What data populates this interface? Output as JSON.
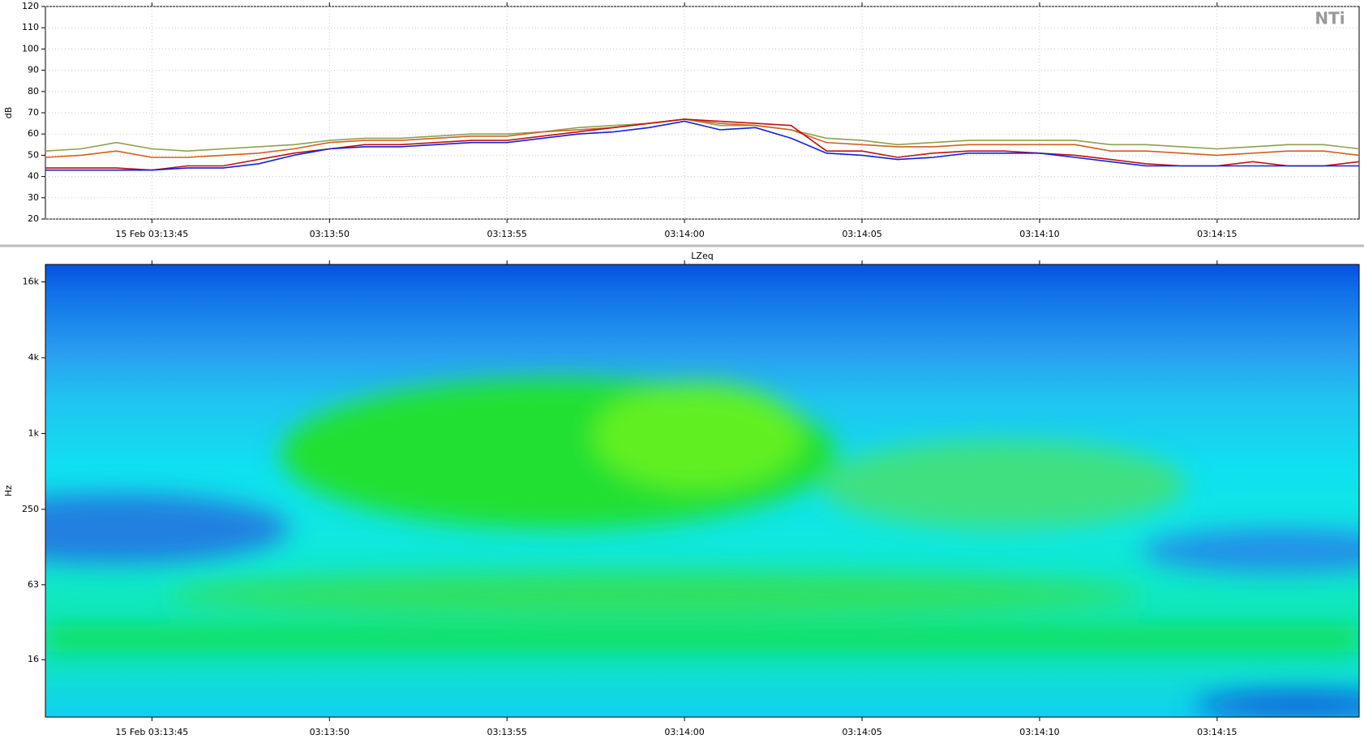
{
  "logo": "NTi",
  "chart_data": [
    {
      "type": "line",
      "ylabel": "dB",
      "grid": true,
      "xlim": [
        42,
        79
      ],
      "xticks": [
        {
          "value": 45,
          "label": "15 Feb 03:13:45"
        },
        {
          "value": 50,
          "label": "03:13:50"
        },
        {
          "value": 55,
          "label": "03:13:55"
        },
        {
          "value": 60,
          "label": "03:14:00"
        },
        {
          "value": 65,
          "label": "03:14:05"
        },
        {
          "value": 70,
          "label": "03:14:10"
        },
        {
          "value": 75,
          "label": "03:14:15"
        }
      ],
      "ylim": [
        20,
        120
      ],
      "yticks": [
        20,
        30,
        40,
        50,
        60,
        70,
        80,
        90,
        100,
        110,
        120
      ],
      "x": [
        42,
        43,
        44,
        45,
        46,
        47,
        48,
        49,
        50,
        51,
        52,
        53,
        54,
        55,
        56,
        57,
        58,
        59,
        60,
        61,
        62,
        63,
        64,
        65,
        66,
        67,
        68,
        69,
        70,
        71,
        72,
        73,
        74,
        75,
        76,
        77,
        78,
        79
      ],
      "series": [
        {
          "color": "#8fa050",
          "values": [
            52,
            53,
            56,
            53,
            52,
            53,
            54,
            55,
            57,
            58,
            58,
            59,
            60,
            60,
            61,
            63,
            64,
            65,
            67,
            64,
            64,
            62,
            58,
            57,
            55,
            56,
            57,
            57,
            57,
            57,
            55,
            55,
            54,
            53,
            54,
            55,
            55,
            53
          ]
        },
        {
          "color": "#d06020",
          "values": [
            49,
            50,
            52,
            49,
            49,
            50,
            51,
            53,
            56,
            57,
            57,
            58,
            59,
            59,
            61,
            62,
            63,
            65,
            67,
            65,
            64,
            62,
            56,
            55,
            54,
            54,
            55,
            55,
            55,
            55,
            52,
            52,
            51,
            50,
            51,
            52,
            52,
            50
          ]
        },
        {
          "color": "#c01010",
          "values": [
            44,
            44,
            44,
            43,
            45,
            45,
            48,
            51,
            53,
            55,
            55,
            56,
            57,
            57,
            59,
            61,
            63,
            65,
            67,
            66,
            65,
            64,
            52,
            52,
            49,
            51,
            52,
            52,
            51,
            50,
            48,
            46,
            45,
            45,
            47,
            45,
            45,
            47
          ]
        },
        {
          "color": "#1020e0",
          "values": [
            43,
            43,
            43,
            43,
            44,
            44,
            46,
            50,
            53,
            54,
            54,
            55,
            56,
            56,
            58,
            60,
            61,
            63,
            66,
            62,
            63,
            58,
            51,
            50,
            48,
            49,
            51,
            51,
            51,
            49,
            47,
            45,
            45,
            45,
            45,
            45,
            45,
            45
          ]
        }
      ]
    },
    {
      "type": "heatmap",
      "title": "LZeq",
      "ylabel": "Hz",
      "ylog": true,
      "xlim": [
        42,
        79
      ],
      "xticks": [
        {
          "value": 45,
          "label": "15 Feb 03:13:45"
        },
        {
          "value": 50,
          "label": "03:13:50"
        },
        {
          "value": 55,
          "label": "03:13:55"
        },
        {
          "value": 60,
          "label": "03:14:00"
        },
        {
          "value": 65,
          "label": "03:14:05"
        },
        {
          "value": 70,
          "label": "03:14:10"
        },
        {
          "value": 75,
          "label": "03:14:15"
        }
      ],
      "ylim": [
        5.6,
        22000
      ],
      "yticks": [
        16,
        63,
        250,
        {
          "value": 1000,
          "label": "1k"
        },
        {
          "value": 4000,
          "label": "4k"
        },
        {
          "value": 16000,
          "label": "16k"
        }
      ]
    }
  ]
}
